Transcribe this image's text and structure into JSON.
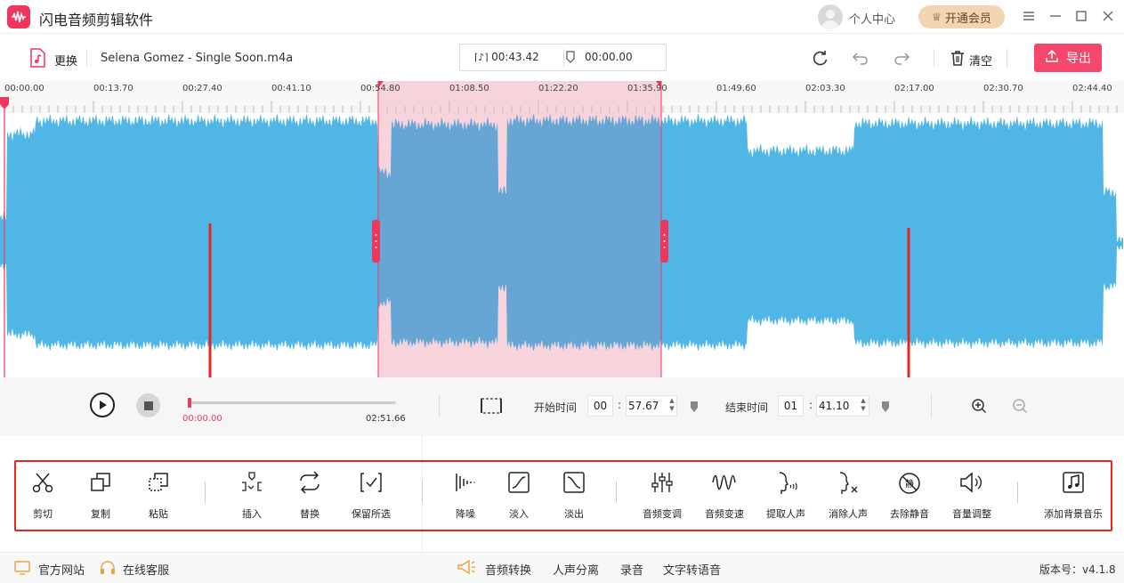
{
  "app": {
    "title": "闪电音频剪辑软件"
  },
  "header": {
    "user_center": "个人中心",
    "vip_button": "开通会员"
  },
  "toolbar": {
    "replace_label": "更换",
    "file_name": "Selena Gomez - Single Soon.m4a",
    "duration_time": "00:43.42",
    "position_time": "00:00.00",
    "clear_label": "清空",
    "export_label": "导出"
  },
  "ruler": {
    "ticks": [
      "00:00.00",
      "00:13.70",
      "00:27.40",
      "00:41.10",
      "00:54.80",
      "01:08.50",
      "01:22.20",
      "01:35.90",
      "01:49.60",
      "02:03.30",
      "02:17.00",
      "02:30.70",
      "02:44.40"
    ]
  },
  "playback": {
    "current_time": "00:00.00",
    "total_time": "02:51.66",
    "progress": 0.0
  },
  "selection": {
    "start_label": "开始时间",
    "start_min": "00",
    "start_sec": "57.67",
    "end_label": "结束时间",
    "end_min": "01",
    "end_sec": "41.10"
  },
  "tools": [
    {
      "id": "cut",
      "label": "剪切"
    },
    {
      "id": "copy",
      "label": "复制"
    },
    {
      "id": "paste",
      "label": "粘贴"
    },
    {
      "id": "insert",
      "label": "插入"
    },
    {
      "id": "replace",
      "label": "替换"
    },
    {
      "id": "keep",
      "label": "保留所选"
    },
    {
      "id": "denoise",
      "label": "降噪"
    },
    {
      "id": "fadein",
      "label": "淡入"
    },
    {
      "id": "fadeout",
      "label": "淡出"
    },
    {
      "id": "pitch",
      "label": "音频变调"
    },
    {
      "id": "speed",
      "label": "音频变速"
    },
    {
      "id": "extract-vocal",
      "label": "提取人声"
    },
    {
      "id": "remove-vocal",
      "label": "消除人声"
    },
    {
      "id": "remove-silence",
      "label": "去除静音"
    },
    {
      "id": "volume",
      "label": "音量调整"
    },
    {
      "id": "bgm",
      "label": "添加背景音乐"
    }
  ],
  "footer": {
    "website": "官方网站",
    "support": "在线客服",
    "convert": "音频转换",
    "separate": "人声分离",
    "record": "录音",
    "tts": "文字转语音",
    "version": "版本号：v4.1.8"
  },
  "colors": {
    "accent": "#f0365d",
    "wave": "#4fb6e6",
    "selection_bg": "#f7d4dc",
    "selection_wave": "#67a5d4",
    "annotation": "#e8261f"
  }
}
